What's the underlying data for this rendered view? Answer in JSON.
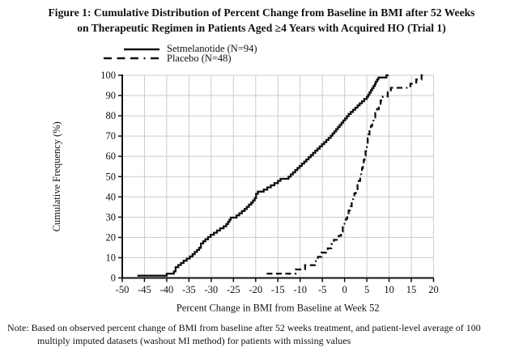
{
  "figure": {
    "title_lines": [
      "Figure 1: Cumulative Distribution of Percent Change from Baseline in BMI after 52 Weeks",
      "on Therapeutic Regimen in Patients Aged ≥4 Years with Acquired HO (Trial 1)"
    ],
    "note": {
      "prefix": "Note:",
      "line1": "Based on observed percent  change of BMI from baseline after 52 weeks treatment,  and patient-level  average of 100",
      "line2": "multiply  imputed datasets  (washout MI method)  for patients  with missing  values",
      "full_text": "Note: Based on observed percent change of BMI from baseline after 52 weeks treatment, and patient-level average of 100 multiply imputed datasets (washout MI method) for patients with missing values"
    }
  },
  "style": {
    "line_color": "#111111",
    "grid_color": "#cccccc",
    "axis_color": "#111111",
    "background": "#ffffff"
  },
  "chart_data": {
    "type": "line",
    "subtype": "cumulative-step-ecdf",
    "title": "",
    "xlabel": "Percent Change in BMI from Baseline at Week 52",
    "ylabel": "Cumulative Frequency (%)",
    "xlim": [
      -50,
      20
    ],
    "ylim": [
      0,
      100
    ],
    "x_ticks": [
      -50,
      -45,
      -40,
      -35,
      -30,
      -25,
      -20,
      -15,
      -10,
      -5,
      0,
      5,
      10,
      15,
      20
    ],
    "y_ticks": [
      0,
      10,
      20,
      30,
      40,
      50,
      60,
      70,
      80,
      90,
      100
    ],
    "grid": true,
    "legend_position": "above-plot-left",
    "series": [
      {
        "name": "Setmelanotide (N=94)",
        "style": "solid",
        "color": "#111111",
        "end_x": 9.9,
        "points": [
          [
            -46.6,
            1.1
          ],
          [
            -40,
            2.1
          ],
          [
            -38.4,
            3.2
          ],
          [
            -38,
            5.3
          ],
          [
            -37.4,
            6.4
          ],
          [
            -36.8,
            7.4
          ],
          [
            -36.2,
            8.5
          ],
          [
            -35.5,
            9.6
          ],
          [
            -34.8,
            10.6
          ],
          [
            -34.2,
            11.7
          ],
          [
            -33.7,
            12.8
          ],
          [
            -33.2,
            13.8
          ],
          [
            -32.7,
            14.9
          ],
          [
            -32.3,
            17
          ],
          [
            -31.8,
            18.1
          ],
          [
            -31.3,
            19.1
          ],
          [
            -30.7,
            20.2
          ],
          [
            -30.1,
            21.3
          ],
          [
            -29.4,
            22.3
          ],
          [
            -28.7,
            23.4
          ],
          [
            -28,
            24.5
          ],
          [
            -27.2,
            25.5
          ],
          [
            -26.6,
            26.6
          ],
          [
            -26.2,
            27.7
          ],
          [
            -25.9,
            28.7
          ],
          [
            -25.6,
            29.8
          ],
          [
            -24.3,
            30.9
          ],
          [
            -23.7,
            31.9
          ],
          [
            -23.1,
            33
          ],
          [
            -22.5,
            34
          ],
          [
            -22,
            35.1
          ],
          [
            -21.5,
            36.2
          ],
          [
            -21,
            37.2
          ],
          [
            -20.6,
            38.3
          ],
          [
            -20.2,
            39.4
          ],
          [
            -19.9,
            41.5
          ],
          [
            -19.5,
            42.6
          ],
          [
            -18.2,
            43.6
          ],
          [
            -17.4,
            44.7
          ],
          [
            -16.6,
            45.7
          ],
          [
            -15.8,
            46.8
          ],
          [
            -15,
            47.9
          ],
          [
            -14.4,
            48.9
          ],
          [
            -12.6,
            50
          ],
          [
            -12.1,
            51.1
          ],
          [
            -11.6,
            52.1
          ],
          [
            -11.1,
            53.2
          ],
          [
            -10.6,
            54.3
          ],
          [
            -10.1,
            55.3
          ],
          [
            -9.6,
            56.4
          ],
          [
            -9.1,
            57.4
          ],
          [
            -8.6,
            58.5
          ],
          [
            -8.1,
            59.6
          ],
          [
            -7.6,
            60.6
          ],
          [
            -7.1,
            61.7
          ],
          [
            -6.6,
            62.8
          ],
          [
            -6.1,
            63.8
          ],
          [
            -5.6,
            64.9
          ],
          [
            -5.1,
            66
          ],
          [
            -4.6,
            67
          ],
          [
            -4.1,
            68.1
          ],
          [
            -3.6,
            69.1
          ],
          [
            -3.1,
            70.2
          ],
          [
            -2.7,
            71.3
          ],
          [
            -2.3,
            72.3
          ],
          [
            -1.9,
            73.4
          ],
          [
            -1.5,
            74.5
          ],
          [
            -1.1,
            75.5
          ],
          [
            -0.7,
            76.6
          ],
          [
            -0.3,
            77.7
          ],
          [
            0.1,
            78.7
          ],
          [
            0.5,
            79.8
          ],
          [
            0.9,
            80.9
          ],
          [
            1.4,
            81.9
          ],
          [
            1.9,
            83
          ],
          [
            2.4,
            84
          ],
          [
            2.9,
            85.1
          ],
          [
            3.4,
            86.2
          ],
          [
            3.9,
            87.2
          ],
          [
            4.4,
            88.3
          ],
          [
            5,
            89.4
          ],
          [
            5.3,
            90.4
          ],
          [
            5.6,
            91.5
          ],
          [
            5.9,
            92.6
          ],
          [
            6.2,
            93.6
          ],
          [
            6.5,
            94.7
          ],
          [
            6.8,
            95.7
          ],
          [
            7,
            96.8
          ],
          [
            7.3,
            97.9
          ],
          [
            7.6,
            98.9
          ],
          [
            9.4,
            100
          ]
        ]
      },
      {
        "name": "Placebo (N=48)",
        "style": "dashed",
        "color": "#111111",
        "end_x": 17.8,
        "points": [
          [
            -17.5,
            2.1
          ],
          [
            -11,
            4.2
          ],
          [
            -8.9,
            6.3
          ],
          [
            -6.7,
            8.3
          ],
          [
            -6,
            10.4
          ],
          [
            -5.2,
            12.5
          ],
          [
            -3.8,
            14.6
          ],
          [
            -3,
            16.7
          ],
          [
            -2.4,
            18.8
          ],
          [
            -1.3,
            20.8
          ],
          [
            -0.8,
            22.9
          ],
          [
            -0.4,
            25
          ],
          [
            0,
            27.1
          ],
          [
            0.3,
            29.2
          ],
          [
            0.6,
            31.3
          ],
          [
            0.9,
            33.3
          ],
          [
            1.2,
            35.4
          ],
          [
            1.6,
            37.5
          ],
          [
            1.9,
            39.6
          ],
          [
            2.2,
            41.7
          ],
          [
            2.5,
            43.8
          ],
          [
            2.9,
            45.8
          ],
          [
            3.2,
            47.9
          ],
          [
            3.5,
            50
          ],
          [
            3.7,
            52.1
          ],
          [
            3.9,
            54.2
          ],
          [
            4.1,
            56.3
          ],
          [
            4.3,
            58.3
          ],
          [
            4.5,
            60.4
          ],
          [
            4.7,
            62.5
          ],
          [
            4.8,
            64.6
          ],
          [
            5,
            66.7
          ],
          [
            5.2,
            68.8
          ],
          [
            5.4,
            70.8
          ],
          [
            5.6,
            72.9
          ],
          [
            5.9,
            75
          ],
          [
            6.2,
            77.1
          ],
          [
            6.5,
            79.2
          ],
          [
            6.9,
            81.3
          ],
          [
            7.3,
            83.3
          ],
          [
            7.7,
            85.4
          ],
          [
            8.1,
            87.5
          ],
          [
            8.6,
            89.6
          ],
          [
            9.7,
            91.7
          ],
          [
            10.4,
            93.8
          ],
          [
            14.8,
            95.8
          ],
          [
            16.1,
            97.9
          ],
          [
            17.3,
            100
          ]
        ]
      }
    ]
  }
}
